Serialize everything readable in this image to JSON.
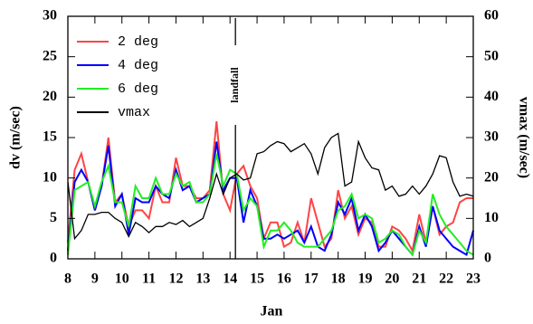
{
  "chart_data": {
    "type": "line",
    "xlabel": "Jan",
    "ylabel": "dv (m/sec)",
    "y2label": "vmax (m/sec)",
    "x": [
      8,
      8.25,
      8.5,
      8.75,
      9,
      9.25,
      9.5,
      9.75,
      10,
      10.25,
      10.5,
      10.75,
      11,
      11.25,
      11.5,
      11.75,
      12,
      12.25,
      12.5,
      12.75,
      13,
      13.25,
      13.5,
      13.75,
      14,
      14.25,
      14.5,
      14.75,
      15,
      15.25,
      15.5,
      15.75,
      16,
      16.25,
      16.5,
      16.75,
      17,
      17.25,
      17.5,
      17.75,
      18,
      18.25,
      18.5,
      18.75,
      19,
      19.25,
      19.5,
      19.75,
      20,
      20.25,
      20.5,
      20.75,
      21,
      21.25,
      21.5,
      21.75,
      22,
      22.25,
      22.5,
      22.75,
      23
    ],
    "series": [
      {
        "name": "2 deg",
        "color": "#ff4444",
        "values": [
          2,
          11,
          13,
          9.5,
          6,
          9,
          15,
          7,
          8,
          4,
          6,
          6,
          5,
          9,
          7,
          7,
          12.5,
          9,
          9,
          7.5,
          7.5,
          8.5,
          17,
          8,
          6,
          10.5,
          11.5,
          9,
          7.5,
          2.5,
          4.5,
          4.5,
          1.5,
          2,
          4.5,
          2,
          7.5,
          4.5,
          1.5,
          2.5,
          8.5,
          5,
          6.5,
          3,
          5,
          4.5,
          1.5,
          1.5,
          4,
          3.5,
          2.5,
          1,
          5.5,
          2,
          6.5,
          3,
          4,
          4.5,
          7,
          7.5,
          7.5
        ]
      },
      {
        "name": "4 deg",
        "color": "#0000ff",
        "values": [
          1,
          9.5,
          11,
          9.5,
          6,
          9,
          14,
          6.5,
          8,
          3,
          7.5,
          7,
          7,
          9,
          8,
          7.5,
          11,
          8.5,
          9,
          7,
          7.5,
          8,
          14.5,
          8.5,
          10,
          10,
          4.5,
          8.5,
          6.5,
          2.5,
          2.5,
          3,
          2.5,
          3,
          3.5,
          2,
          4,
          1.5,
          1,
          3,
          7,
          5.5,
          7.5,
          3.5,
          5.5,
          4,
          1,
          2,
          3.5,
          2.5,
          1.5,
          0.5,
          4,
          1.5,
          6.5,
          3.5,
          2.5,
          1.5,
          1,
          0.5,
          3.5
        ]
      },
      {
        "name": "6 deg",
        "color": "#22ee22",
        "values": [
          0.5,
          8.5,
          9,
          9.5,
          6.5,
          9.5,
          11.5,
          7,
          7,
          4,
          9,
          7.5,
          7.5,
          10,
          8,
          8,
          10.5,
          9,
          9.5,
          7,
          7,
          8,
          13,
          9,
          11,
          10.5,
          6,
          7.5,
          6.5,
          1.5,
          3.5,
          3.5,
          4.5,
          3.5,
          2,
          1.5,
          1.5,
          1.5,
          2.5,
          3.5,
          6,
          6.5,
          8,
          5,
          5.5,
          5,
          2,
          2.5,
          3.5,
          3,
          1.5,
          0.5,
          3.5,
          2,
          8,
          5.5,
          4,
          3,
          2,
          1,
          0.5
        ]
      },
      {
        "name": "vmax",
        "color": "#000000",
        "axis": "y2",
        "values": [
          19,
          5,
          7,
          11,
          11,
          11.5,
          11.5,
          10,
          9,
          5.5,
          9,
          8,
          6.5,
          8,
          8,
          9,
          8.5,
          9.5,
          8,
          9,
          10,
          15,
          21,
          16,
          20,
          21,
          19.5,
          20,
          26,
          26.5,
          28,
          29,
          28.5,
          26.5,
          27.5,
          28.5,
          26,
          21,
          27.5,
          30,
          31,
          18,
          19,
          29,
          25,
          22.5,
          22,
          17,
          18,
          15.5,
          16,
          18,
          16,
          18,
          21,
          25.5,
          25,
          19,
          15.5,
          16,
          15.5
        ]
      }
    ],
    "xlim": [
      8,
      23
    ],
    "xticks": [
      8,
      9,
      10,
      11,
      12,
      13,
      14,
      15,
      16,
      17,
      18,
      19,
      20,
      21,
      22,
      23
    ],
    "ylim": [
      0,
      30
    ],
    "yticks": [
      0,
      5,
      10,
      15,
      20,
      25,
      30
    ],
    "y2lim": [
      0,
      60
    ],
    "y2ticks": [
      0,
      10,
      20,
      30,
      40,
      50,
      60
    ],
    "legend": "upper left",
    "annotations": [
      {
        "text": "landfall",
        "x": 14.2
      }
    ]
  }
}
